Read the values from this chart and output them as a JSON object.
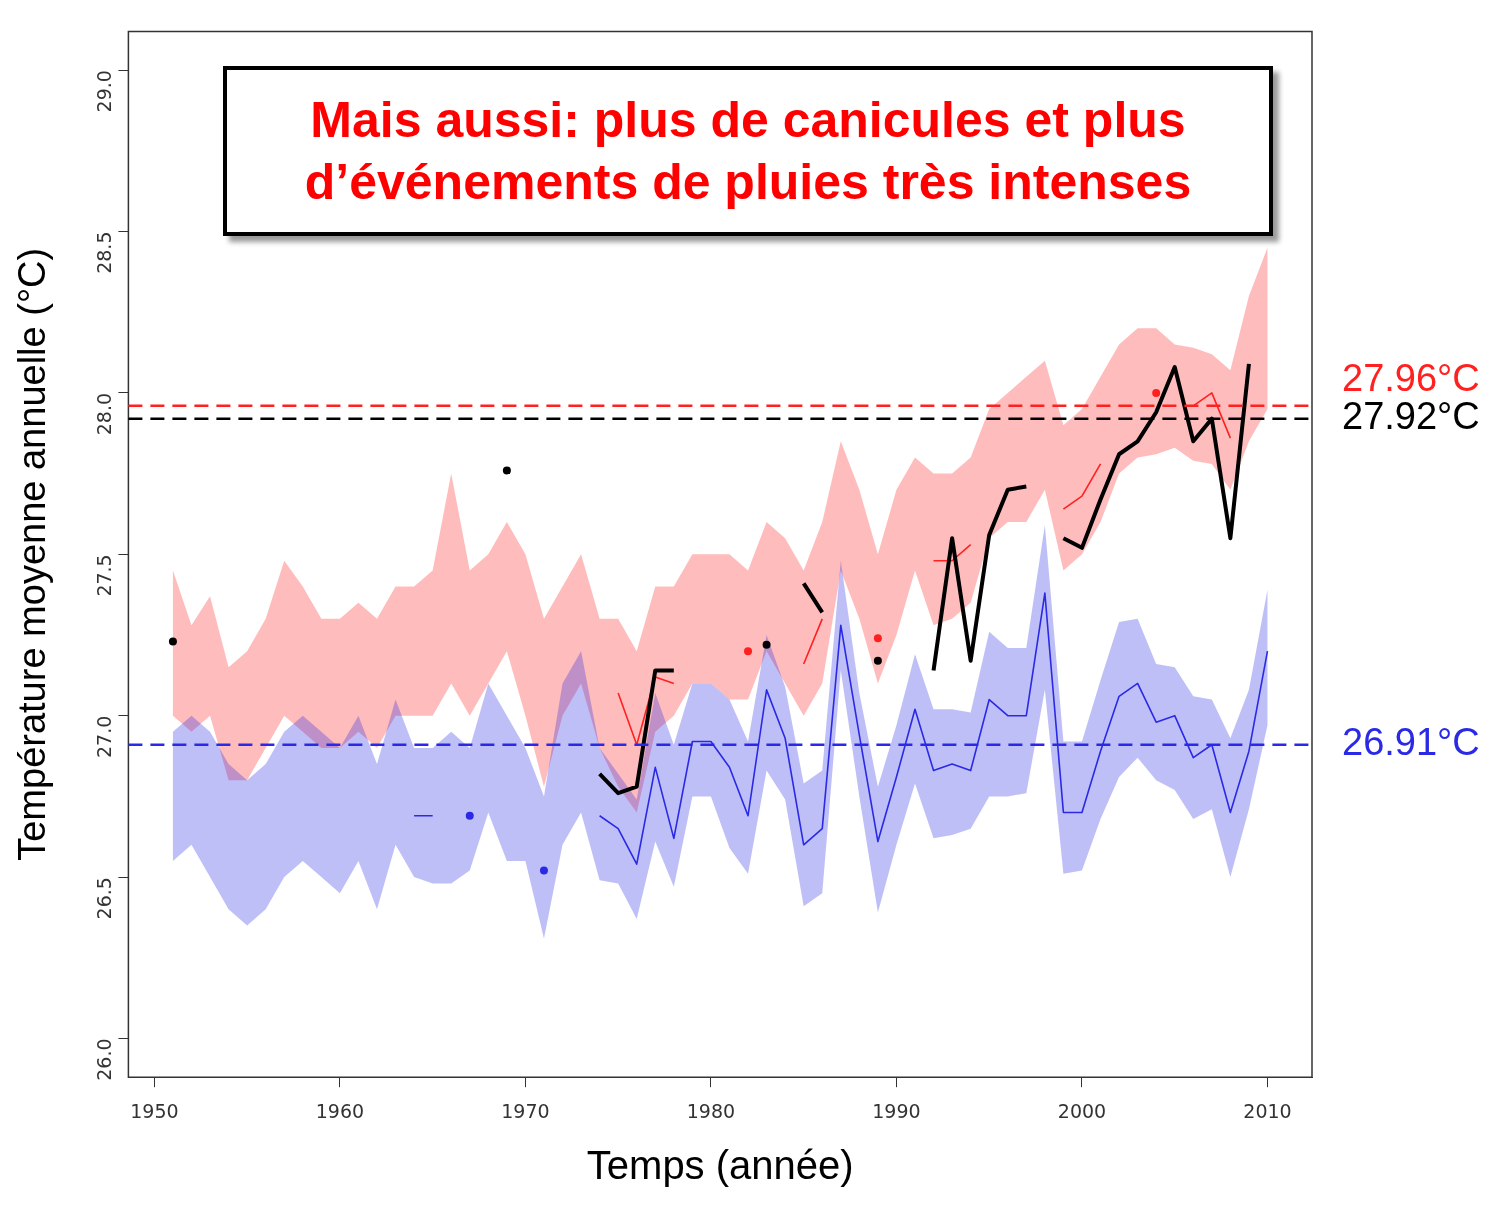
{
  "chart_data": {
    "type": "line",
    "xlabel": "Temps (année)",
    "ylabel": "Température moyenne annuelle (°C)",
    "x": [
      1951,
      1952,
      1953,
      1954,
      1955,
      1956,
      1957,
      1958,
      1959,
      1960,
      1961,
      1962,
      1963,
      1964,
      1965,
      1966,
      1967,
      1968,
      1969,
      1970,
      1971,
      1972,
      1973,
      1974,
      1975,
      1976,
      1977,
      1978,
      1979,
      1980,
      1981,
      1982,
      1983,
      1984,
      1985,
      1986,
      1987,
      1988,
      1989,
      1990,
      1991,
      1992,
      1993,
      1994,
      1995,
      1996,
      1997,
      1998,
      1999,
      2000,
      2001,
      2002,
      2003,
      2004,
      2005,
      2006,
      2007,
      2008,
      2009,
      2010
    ],
    "series": [
      {
        "color": "#000000",
        "values": [
          27.23,
          null,
          null,
          null,
          null,
          null,
          null,
          null,
          null,
          null,
          null,
          null,
          null,
          null,
          null,
          null,
          null,
          null,
          27.76,
          null,
          null,
          null,
          null,
          26.82,
          26.76,
          26.78,
          27.14,
          27.14,
          null,
          null,
          null,
          null,
          27.22,
          null,
          27.41,
          27.32,
          null,
          null,
          27.17,
          null,
          null,
          27.14,
          27.55,
          27.17,
          27.56,
          27.7,
          27.71,
          null,
          27.55,
          27.52,
          27.67,
          27.81,
          27.85,
          27.94,
          28.08,
          27.85,
          27.92,
          27.55,
          28.09,
          null
        ]
      },
      {
        "color": "#ff2020",
        "values": [
          null,
          null,
          null,
          null,
          null,
          null,
          null,
          null,
          null,
          null,
          null,
          null,
          null,
          null,
          null,
          null,
          null,
          null,
          null,
          null,
          null,
          null,
          null,
          null,
          27.07,
          26.91,
          27.12,
          27.1,
          null,
          null,
          null,
          27.2,
          null,
          null,
          27.16,
          27.3,
          null,
          null,
          27.24,
          null,
          null,
          27.48,
          27.48,
          27.53,
          null,
          null,
          null,
          null,
          27.64,
          27.68,
          27.78,
          null,
          null,
          28.0,
          null,
          27.96,
          28.0,
          27.86,
          null,
          null
        ],
        "lower": [
          27.0,
          26.95,
          27.0,
          26.8,
          26.8,
          26.9,
          27.0,
          26.95,
          26.9,
          26.9,
          26.95,
          26.9,
          27.0,
          27.0,
          27.0,
          27.1,
          27.0,
          27.1,
          27.2,
          27.0,
          26.78,
          27.0,
          27.1,
          26.9,
          26.78,
          26.7,
          26.95,
          27.0,
          27.1,
          27.1,
          27.05,
          27.05,
          27.2,
          27.1,
          27.0,
          27.1,
          27.45,
          27.3,
          27.1,
          27.25,
          27.45,
          27.28,
          27.3,
          27.35,
          27.55,
          27.6,
          27.6,
          27.7,
          27.45,
          27.5,
          27.6,
          27.75,
          27.8,
          27.81,
          27.83,
          27.79,
          27.78,
          27.7,
          27.85,
          27.95
        ],
        "upper": [
          27.45,
          27.28,
          27.37,
          27.15,
          27.2,
          27.3,
          27.48,
          27.4,
          27.3,
          27.3,
          27.35,
          27.3,
          27.4,
          27.4,
          27.45,
          27.75,
          27.45,
          27.5,
          27.6,
          27.5,
          27.3,
          27.4,
          27.5,
          27.3,
          27.3,
          27.2,
          27.4,
          27.4,
          27.5,
          27.5,
          27.5,
          27.45,
          27.6,
          27.55,
          27.45,
          27.6,
          27.85,
          27.7,
          27.5,
          27.7,
          27.8,
          27.75,
          27.75,
          27.8,
          27.95,
          28.0,
          28.05,
          28.1,
          27.9,
          27.95,
          28.05,
          28.15,
          28.2,
          28.2,
          28.15,
          28.14,
          28.12,
          28.07,
          28.3,
          28.45
        ]
      },
      {
        "color": "#2a2ae6",
        "values": [
          null,
          null,
          null,
          null,
          null,
          null,
          null,
          null,
          null,
          null,
          null,
          null,
          null,
          26.69,
          26.69,
          null,
          26.69,
          null,
          null,
          null,
          26.52,
          null,
          null,
          26.69,
          26.65,
          26.54,
          26.84,
          26.62,
          26.92,
          26.92,
          26.84,
          26.69,
          27.08,
          26.93,
          26.6,
          26.65,
          27.28,
          26.94,
          26.61,
          26.81,
          27.02,
          26.83,
          26.85,
          26.83,
          27.05,
          27.0,
          27.0,
          27.38,
          26.7,
          26.7,
          26.89,
          27.06,
          27.1,
          26.98,
          27.0,
          26.87,
          26.91,
          26.7,
          26.89,
          27.2
        ],
        "lower": [
          26.55,
          26.6,
          26.5,
          26.4,
          26.35,
          26.4,
          26.5,
          26.55,
          26.5,
          26.45,
          26.55,
          26.4,
          26.6,
          26.5,
          26.48,
          26.48,
          26.52,
          26.7,
          26.55,
          26.55,
          26.31,
          26.6,
          26.7,
          26.49,
          26.48,
          26.37,
          26.61,
          26.47,
          26.75,
          26.75,
          26.59,
          26.51,
          26.83,
          26.74,
          26.41,
          26.45,
          27.14,
          26.75,
          26.39,
          26.6,
          26.79,
          26.62,
          26.63,
          26.65,
          26.75,
          26.75,
          26.76,
          27.08,
          26.51,
          26.52,
          26.68,
          26.81,
          26.87,
          26.8,
          26.77,
          26.68,
          26.71,
          26.5,
          26.71,
          26.97
        ],
        "upper": [
          26.95,
          27.0,
          26.95,
          26.85,
          26.8,
          26.85,
          26.95,
          27.0,
          26.95,
          26.9,
          27.0,
          26.85,
          27.05,
          26.9,
          26.9,
          26.95,
          26.9,
          27.1,
          27.0,
          26.9,
          26.75,
          27.1,
          27.2,
          26.9,
          26.82,
          26.74,
          27.07,
          26.91,
          27.1,
          27.1,
          27.05,
          26.92,
          27.25,
          27.09,
          26.79,
          26.83,
          27.48,
          27.07,
          26.78,
          26.97,
          27.19,
          27.02,
          27.02,
          27.01,
          27.26,
          27.21,
          27.21,
          27.59,
          26.92,
          26.92,
          27.11,
          27.29,
          27.3,
          27.16,
          27.15,
          27.06,
          27.05,
          26.93,
          27.08,
          27.39
        ]
      }
    ],
    "xlim": [
      1948.6,
      2012.4
    ],
    "xticks": [
      1950,
      1960,
      1970,
      1980,
      1990,
      2000,
      2010
    ],
    "ylim": [
      25.88,
      29.12
    ],
    "yticks": [
      {
        "value": 26,
        "label": "26.0"
      },
      {
        "value": 26.5,
        "label": "26.5"
      },
      {
        "value": 27,
        "label": "27.0"
      },
      {
        "value": 27.5,
        "label": "27.5"
      },
      {
        "value": 28,
        "label": "28.0"
      },
      {
        "value": 28.5,
        "label": "28.5"
      },
      {
        "value": 29,
        "label": "29.0"
      }
    ],
    "ref_lines": [
      {
        "axis": "y",
        "value": 27.96,
        "label": "27.96°C",
        "color": "#ff2020",
        "line_style": "dashed"
      },
      {
        "axis": "y",
        "value": 27.92,
        "label": "27.92°C",
        "color": "#000000",
        "line_style": "dashed"
      },
      {
        "axis": "y",
        "value": 26.91,
        "label": "26.91°C",
        "color": "#2a2ae6",
        "line_style": "dashed"
      }
    ],
    "annotations": [
      "Mais aussi: plus de canicules et plus d’événements de pluies très intenses"
    ],
    "grid": false,
    "legend": false,
    "marker": "none",
    "line_style": "solid"
  }
}
